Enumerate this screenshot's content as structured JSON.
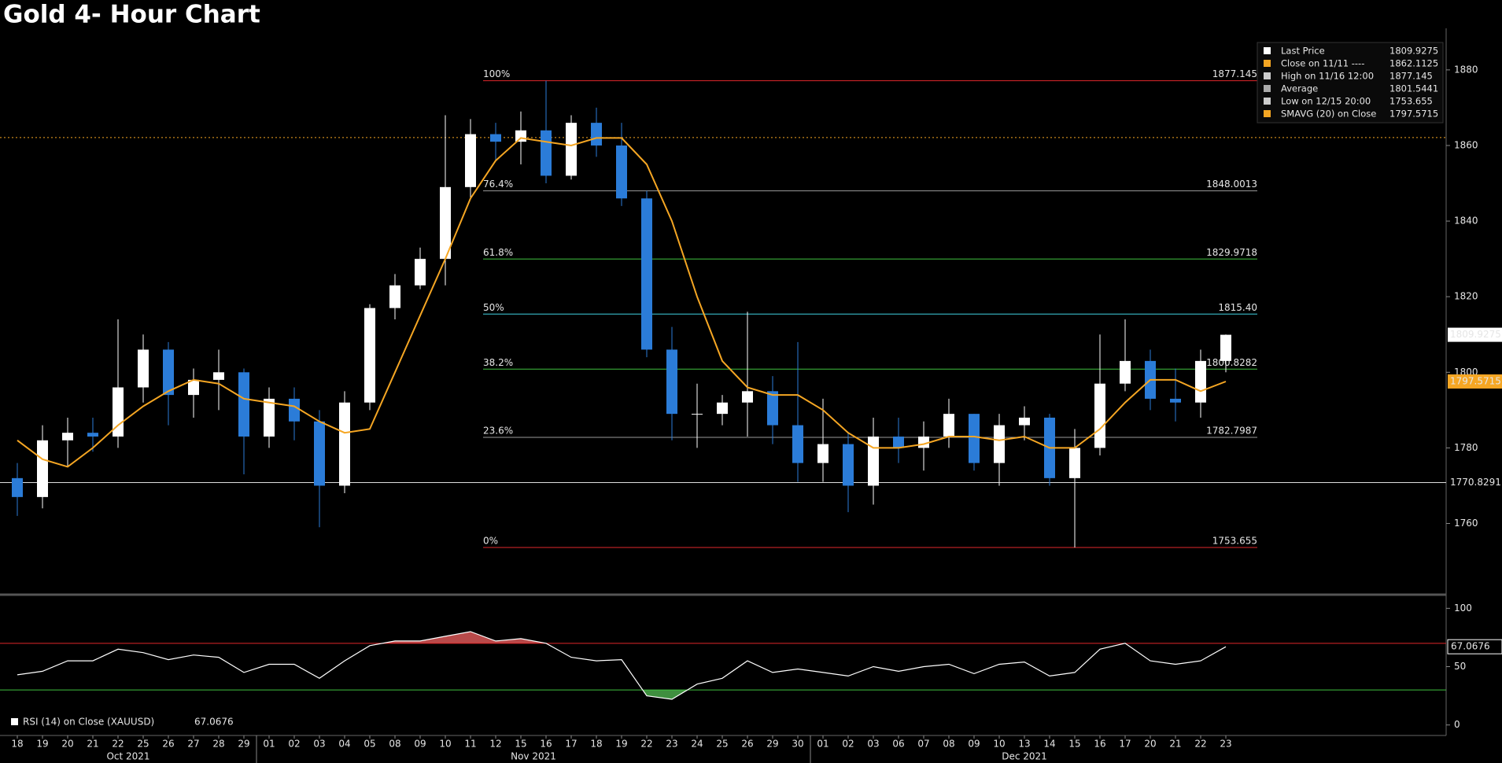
{
  "chart_data": {
    "type": "candlestick",
    "title": "Gold 4- Hour Chart",
    "categories": [
      "18",
      "19",
      "20",
      "21",
      "22",
      "25",
      "26",
      "27",
      "28",
      "29",
      "01",
      "02",
      "03",
      "04",
      "05",
      "08",
      "09",
      "10",
      "11",
      "12",
      "15",
      "16",
      "17",
      "18",
      "19",
      "22",
      "23",
      "24",
      "25",
      "26",
      "29",
      "30",
      "01",
      "02",
      "03",
      "06",
      "07",
      "08",
      "09",
      "10",
      "13",
      "14",
      "15",
      "16",
      "17",
      "20",
      "21",
      "22",
      "23"
    ],
    "months": [
      "Oct 2021",
      "Nov 2021",
      "Dec 2021"
    ],
    "open": [
      1772,
      1767,
      1782,
      1784,
      1783,
      1796,
      1806,
      1794,
      1798,
      1800,
      1783,
      1793,
      1787,
      1770,
      1792,
      1817,
      1823,
      1830,
      1849,
      1863,
      1861,
      1864,
      1852,
      1866,
      1860,
      1846,
      1806,
      1789,
      1789,
      1792,
      1795,
      1786,
      1776,
      1781,
      1770,
      1783,
      1780,
      1783,
      1789,
      1776,
      1786,
      1788,
      1772,
      1780,
      1797,
      1803,
      1793,
      1792,
      1803
    ],
    "high": [
      1776,
      1786,
      1788,
      1788,
      1814,
      1810,
      1808,
      1801,
      1806,
      1801,
      1796,
      1796,
      1790,
      1795,
      1818,
      1826,
      1833,
      1868,
      1867,
      1866,
      1869,
      1877.145,
      1868,
      1870,
      1866,
      1848,
      1812,
      1797,
      1794,
      1816,
      1799,
      1808,
      1793,
      1784,
      1788,
      1788,
      1787,
      1793,
      1789,
      1789,
      1791,
      1789,
      1785,
      1810,
      1814,
      1806,
      1801,
      1806,
      1810
    ],
    "low": [
      1762,
      1764,
      1775,
      1779,
      1780,
      1792,
      1786,
      1788,
      1790,
      1773,
      1780,
      1782,
      1759,
      1768,
      1790,
      1814,
      1822,
      1823,
      1846,
      1856,
      1855,
      1850,
      1851,
      1857,
      1844,
      1804,
      1782,
      1780,
      1786,
      1783,
      1781,
      1771,
      1771,
      1763,
      1765,
      1776,
      1774,
      1780,
      1774,
      1770,
      1782,
      1770,
      1753.655,
      1778,
      1795,
      1790,
      1787,
      1788,
      1800
    ],
    "close": [
      1767,
      1782,
      1784,
      1783,
      1796,
      1806,
      1794,
      1798,
      1800,
      1783,
      1793,
      1787,
      1770,
      1792,
      1817,
      1823,
      1830,
      1849,
      1863,
      1861,
      1864,
      1852,
      1866,
      1860,
      1846,
      1806,
      1789,
      1789,
      1792,
      1795,
      1786,
      1776,
      1781,
      1770,
      1783,
      1780,
      1783,
      1789,
      1776,
      1786,
      1788,
      1772,
      1780,
      1797,
      1803,
      1793,
      1792,
      1803,
      1809.9275
    ],
    "up_color": "#ffffff",
    "down_color": "#2b7cd8",
    "ylim": [
      1742,
      1891
    ],
    "yticks": [
      1760,
      1780,
      1800,
      1820,
      1840,
      1860,
      1880
    ],
    "sma": {
      "color": "#f5a623",
      "values": [
        1782,
        1777,
        1775,
        1780,
        1786,
        1791,
        1795,
        1798,
        1797,
        1793,
        1792,
        1791,
        1787,
        1784,
        1785,
        1800,
        1815,
        1830,
        1846,
        1856,
        1862,
        1861,
        1860,
        1862,
        1862,
        1855,
        1840,
        1820,
        1803,
        1796,
        1794,
        1794,
        1790,
        1784,
        1780,
        1780,
        1781,
        1783,
        1783,
        1782,
        1783,
        1780,
        1780,
        1785,
        1792,
        1798,
        1798,
        1795,
        1797.5715
      ]
    },
    "fib": [
      {
        "level": "100%",
        "value": 1877.145,
        "color": "#e0272b"
      },
      {
        "level": "76.4%",
        "value": 1848.0013,
        "color": "#9a9a9a"
      },
      {
        "level": "61.8%",
        "value": 1829.9718,
        "color": "#3fc13f"
      },
      {
        "level": "50%",
        "value": {
          "value": 1815.4,
          "label": "1815.40"
        },
        "color": "#3fd0e0"
      },
      {
        "level": "38.2%",
        "value": 1800.8282,
        "color": "#3fc13f"
      },
      {
        "level": "23.6%",
        "value": 1782.7987,
        "color": "#9a9a9a"
      },
      {
        "level": "0%",
        "value": 1753.655,
        "color": "#e0272b"
      }
    ],
    "reference_line": 1770.8291,
    "legend": [
      {
        "label": "Last Price",
        "value": 1809.9275
      },
      {
        "label": "Close on 11/11 ----",
        "value": 1862.1125
      },
      {
        "label": "High on 11/16 12:00",
        "value": 1877.145
      },
      {
        "label": "Average",
        "value": 1801.5441
      },
      {
        "label": "Low on 12/15 20:00",
        "value": 1753.655
      },
      {
        "label": "SMAVG (20)  on Close",
        "value": 1797.5715
      }
    ],
    "rsi": {
      "legend": "RSI (14)  on Close (XAUUSD)",
      "last": 67.0676,
      "ylim": [
        -9,
        109
      ],
      "yticks": [
        0,
        50,
        100
      ],
      "upper": 70,
      "lower": 30,
      "values": [
        43,
        46,
        55,
        55,
        65,
        62,
        56,
        60,
        58,
        45,
        52,
        52,
        40,
        55,
        68,
        72,
        72,
        76,
        80,
        72,
        74,
        70,
        58,
        55,
        56,
        25,
        22,
        35,
        40,
        55,
        45,
        48,
        45,
        42,
        50,
        46,
        50,
        52,
        44,
        52,
        54,
        42,
        45,
        65,
        70,
        55,
        52,
        55,
        67.0676
      ]
    }
  }
}
